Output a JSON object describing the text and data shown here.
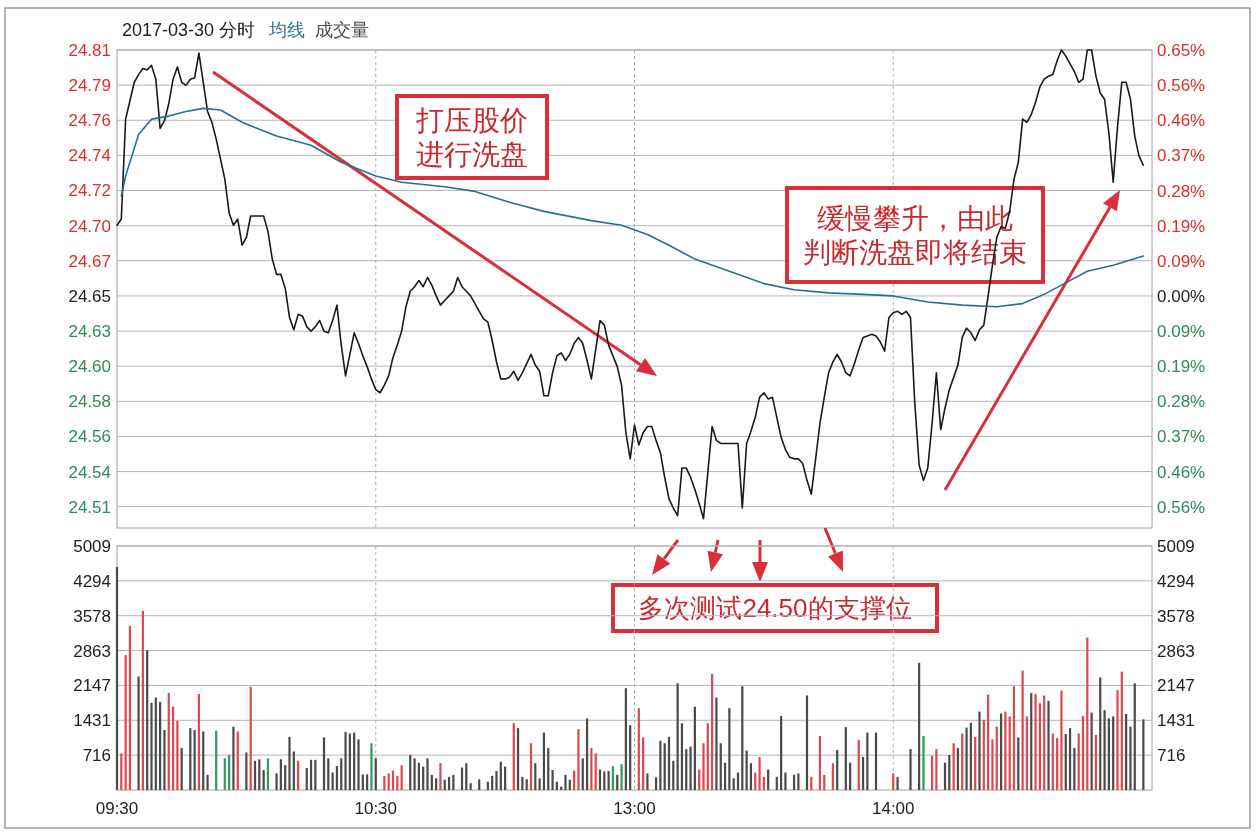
{
  "chart_data": [
    {
      "type": "line",
      "title": "2017-03-30 分时",
      "legend": "top left",
      "grid": true,
      "tick_labels": "y",
      "categories": [
        null,
        null,
        null,
        null,
        null,
        null,
        null,
        null,
        null,
        null,
        null,
        null,
        null,
        null,
        null,
        null,
        null,
        null,
        null,
        null,
        null,
        null,
        null,
        null,
        null,
        null,
        null,
        null,
        null,
        null,
        null,
        null,
        null,
        null,
        null,
        null,
        null,
        null,
        null,
        null,
        null,
        null,
        null,
        null,
        null,
        null,
        null,
        null,
        null,
        null,
        null,
        null,
        null,
        null,
        null,
        null,
        null,
        null,
        null,
        null,
        null,
        null,
        null,
        null,
        null,
        null,
        null,
        null,
        null,
        null,
        null,
        null,
        null,
        null,
        null,
        null,
        null,
        null,
        null,
        null,
        null,
        null,
        null,
        null,
        null,
        null,
        null,
        null,
        null,
        null,
        null,
        null,
        null,
        null,
        null,
        null,
        null,
        null,
        null,
        null,
        null,
        null,
        null,
        null,
        null,
        null,
        null,
        null,
        null,
        null,
        null,
        null,
        null,
        null,
        null,
        null,
        null,
        null,
        null,
        null,
        null,
        null,
        null,
        null,
        null,
        null,
        null,
        null,
        null,
        null,
        null,
        null,
        null,
        null,
        null,
        null,
        null,
        null,
        null,
        null,
        null,
        null,
        null,
        null,
        null,
        null,
        null,
        null,
        null,
        null,
        null,
        null,
        null,
        null,
        null,
        null,
        null,
        null,
        null,
        null,
        null,
        null,
        null,
        null,
        null,
        null,
        null,
        null,
        null,
        null,
        null,
        null,
        null,
        null,
        null,
        null,
        null,
        null,
        null,
        null,
        null,
        null,
        null,
        null,
        null,
        null,
        null,
        null,
        null,
        null,
        null,
        null,
        null,
        null,
        null,
        null,
        null,
        null,
        null,
        null,
        null,
        null,
        null,
        null,
        null,
        null,
        null,
        null,
        null,
        null,
        null,
        null,
        null,
        null,
        null,
        null,
        null,
        null,
        null,
        null,
        null,
        null,
        null,
        null,
        null,
        null,
        null,
        null,
        null,
        null,
        null,
        null,
        null,
        null,
        null,
        null,
        null,
        null,
        null,
        null,
        null
      ],
      "ylim": [
        24.499,
        24.81
      ],
      "yticks": [
        24.81,
        {
          "value": 24.7871,
          "label": "24.79"
        },
        {
          "value": 24.7643,
          "label": "24.76"
        },
        {
          "value": 24.7414,
          "label": "24.74"
        },
        {
          "value": 24.7186,
          "label": "24.72"
        },
        {
          "value": 24.6957,
          "label": "24.70"
        },
        {
          "value": 24.6729,
          "label": "24.67"
        },
        24.65,
        {
          "value": 24.6271,
          "label": "24.63"
        },
        {
          "value": 24.6043,
          "label": "24.60"
        },
        {
          "value": 24.5814,
          "label": "24.58"
        },
        {
          "value": 24.5586,
          "label": "24.56"
        },
        {
          "value": 24.5357,
          "label": "24.54"
        },
        {
          "value": 24.5129,
          "label": "24.51"
        }
      ],
      "y2lim": [
        -0.6126,
        0.6491
      ],
      "y2ticks": [
        {
          "value": 0.6491,
          "label": "0.65%"
        },
        {
          "value": 0.5564,
          "label": "0.56%"
        },
        {
          "value": 0.4636,
          "label": "0.46%"
        },
        {
          "value": 0.3709,
          "label": "0.37%"
        },
        {
          "value": 0.2782,
          "label": "0.28%"
        },
        {
          "value": 0.1855,
          "label": "0.19%"
        },
        {
          "value": 0.0927,
          "label": "0.09%"
        },
        {
          "value": 0,
          "label": "0.00%"
        },
        {
          "value": -0.0927,
          "label": "0.09%"
        },
        {
          "value": -0.1855,
          "label": "0.19%"
        },
        {
          "value": -0.2782,
          "label": "0.28%"
        },
        {
          "value": -0.3709,
          "label": "0.37%"
        },
        {
          "value": -0.4636,
          "label": "0.46%"
        },
        {
          "value": -0.5564,
          "label": "0.56%"
        }
      ],
      "series": [
        {
          "color": "#1a1a1a",
          "values": [
            24.696,
            24.7,
            24.765,
            24.777,
            24.789,
            24.794,
            24.798,
            24.797,
            24.8,
            24.791,
            24.759,
            24.764,
            24.775,
            24.791,
            24.799,
            24.789,
            24.787,
            24.791,
            24.792,
            24.808,
            24.789,
            24.77,
            24.763,
            24.752,
            24.739,
            24.726,
            24.704,
            24.696,
            24.7,
            24.683,
            24.688,
            24.702,
            24.702,
            24.702,
            24.702,
            24.692,
            24.674,
            24.664,
            24.664,
            24.655,
            24.636,
            24.628,
            24.638,
            24.637,
            24.63,
            24.627,
            24.63,
            24.634,
            24.627,
            24.626,
            24.634,
            24.644,
            24.618,
            24.598,
            24.612,
            24.626,
            24.619,
            24.611,
            24.604,
            24.596,
            24.589,
            24.587,
            24.592,
            24.598,
            24.61,
            24.618,
            24.627,
            24.643,
            24.653,
            24.656,
            24.66,
            24.656,
            24.662,
            24.657,
            24.65,
            24.644,
            24.647,
            24.65,
            24.653,
            24.662,
            24.656,
            24.653,
            24.65,
            24.645,
            24.64,
            24.635,
            24.633,
            24.621,
            24.607,
            24.596,
            24.596,
            24.597,
            24.601,
            24.595,
            24.6,
            24.606,
            24.612,
            24.605,
            24.601,
            24.585,
            24.585,
            24.6,
            24.611,
            24.613,
            24.608,
            24.612,
            24.619,
            24.623,
            24.619,
            24.608,
            24.596,
            24.615,
            24.634,
            24.631,
            24.618,
            24.611,
            24.604,
            24.592,
            24.561,
            24.544,
            24.566,
            24.553,
            24.561,
            24.565,
            24.565,
            24.556,
            24.548,
            24.532,
            24.518,
            24.512,
            24.507,
            24.538,
            24.538,
            24.532,
            24.524,
            24.515,
            24.505,
            24.535,
            24.565,
            24.556,
            24.554,
            24.554,
            24.554,
            24.554,
            24.554,
            24.512,
            24.554,
            24.562,
            24.571,
            24.584,
            24.587,
            24.583,
            24.584,
            24.571,
            24.558,
            24.55,
            24.545,
            24.544,
            24.544,
            24.541,
            24.53,
            24.521,
            24.544,
            24.567,
            24.584,
            24.6,
            24.607,
            24.612,
            24.607,
            24.6,
            24.598,
            24.606,
            24.615,
            24.623,
            24.624,
            24.625,
            24.624,
            24.62,
            24.614,
            24.636,
            24.639,
            24.64,
            24.638,
            24.64,
            24.636,
            24.58,
            24.54,
            24.53,
            24.538,
            24.567,
            24.6,
            24.563,
            24.577,
            24.589,
            24.597,
            24.605,
            24.623,
            24.629,
            24.626,
            24.621,
            24.628,
            24.631,
            24.65,
            24.67,
            24.688,
            24.695,
            24.694,
            24.705,
            24.726,
            24.737,
            24.765,
            24.763,
            24.768,
            24.776,
            24.786,
            24.791,
            24.793,
            24.794,
            24.803,
            24.81,
            24.806,
            24.801,
            24.796,
            24.789,
            24.791,
            24.81,
            24.81,
            24.793,
            24.782,
            24.778,
            24.756,
            24.724,
            24.76,
            24.789,
            24.789,
            24.778,
            24.754,
            24.741,
            24.735,
            null,
            null
          ]
        },
        {
          "name": "均线",
          "color": "#2b6f8f",
          "values": [
            null,
            24.715,
            24.728,
            null,
            null,
            24.755,
            null,
            null,
            24.765,
            null,
            null,
            null,
            24.767,
            null,
            null,
            null,
            24.77,
            null,
            null,
            null,
            24.772,
            null,
            null,
            null,
            24.771,
            null,
            null,
            null,
            null,
            24.763,
            null,
            null,
            null,
            null,
            null,
            null,
            null,
            24.754,
            null,
            null,
            null,
            null,
            null,
            null,
            null,
            24.748,
            null,
            null,
            null,
            null,
            null,
            null,
            24.737,
            null,
            null,
            null,
            null,
            null,
            null,
            null,
            24.728,
            null,
            null,
            null,
            null,
            null,
            24.724,
            null,
            null,
            null,
            null,
            null,
            null,
            null,
            null,
            null,
            24.721,
            null,
            null,
            null,
            null,
            null,
            null,
            24.718,
            null,
            null,
            null,
            null,
            null,
            null,
            null,
            24.711,
            null,
            null,
            null,
            null,
            null,
            null,
            null,
            24.705,
            null,
            null,
            null,
            null,
            null,
            null,
            null,
            null,
            null,
            null,
            24.699,
            null,
            null,
            null,
            null,
            null,
            null,
            24.696,
            null,
            null,
            null,
            null,
            null,
            24.69,
            null,
            null,
            null,
            null,
            24.683,
            null,
            null,
            null,
            null,
            null,
            24.674,
            null,
            null,
            null,
            null,
            null,
            null,
            null,
            24.666,
            null,
            null,
            null,
            null,
            null,
            null,
            null,
            24.658,
            null,
            null,
            null,
            null,
            null,
            null,
            24.654,
            null,
            null,
            null,
            null,
            null,
            null,
            null,
            24.652,
            null,
            null,
            null,
            null,
            null,
            null,
            null,
            24.651,
            null,
            null,
            null,
            null,
            null,
            null,
            24.65,
            null,
            null,
            null,
            null,
            null,
            null,
            null,
            24.646,
            null,
            null,
            null,
            null,
            null,
            null,
            null,
            24.644,
            null,
            null,
            null,
            null,
            null,
            null,
            null,
            24.643,
            null,
            null,
            null,
            null,
            null,
            24.645,
            null,
            null,
            null,
            null,
            24.651,
            null,
            null,
            null,
            24.657,
            null,
            null,
            null,
            null,
            null,
            24.666,
            null,
            null,
            null,
            null,
            null,
            24.67,
            null,
            null,
            null,
            null,
            null,
            null,
            24.676,
            null,
            null
          ]
        }
      ],
      "annotations": [
        "打压股价进行洗盘",
        "缓慢攀升，由此判断洗盘即将结束",
        "多次测试24.50的支撑位"
      ]
    },
    {
      "type": "bar",
      "legend": "top left",
      "grid": true,
      "categories": [
        "09:30",
        null,
        null,
        null,
        null,
        null,
        null,
        null,
        null,
        null,
        null,
        null,
        null,
        null,
        null,
        null,
        null,
        null,
        null,
        null,
        null,
        null,
        null,
        null,
        null,
        null,
        null,
        null,
        null,
        null,
        null,
        null,
        null,
        null,
        null,
        null,
        null,
        null,
        null,
        null,
        null,
        null,
        null,
        null,
        null,
        null,
        null,
        null,
        null,
        null,
        null,
        null,
        null,
        null,
        null,
        null,
        null,
        null,
        null,
        null,
        "10:30",
        null,
        null,
        null,
        null,
        null,
        null,
        null,
        null,
        null,
        null,
        null,
        null,
        null,
        null,
        null,
        null,
        null,
        null,
        null,
        null,
        null,
        null,
        null,
        null,
        null,
        null,
        null,
        null,
        null,
        null,
        null,
        null,
        null,
        null,
        null,
        null,
        null,
        null,
        null,
        null,
        null,
        null,
        null,
        null,
        null,
        null,
        null,
        null,
        null,
        null,
        null,
        null,
        null,
        null,
        null,
        null,
        null,
        null,
        null,
        "13:00",
        null,
        null,
        null,
        null,
        null,
        null,
        null,
        null,
        null,
        null,
        null,
        null,
        null,
        null,
        null,
        null,
        null,
        null,
        null,
        null,
        null,
        null,
        null,
        null,
        null,
        null,
        null,
        null,
        null,
        null,
        null,
        null,
        null,
        null,
        null,
        null,
        null,
        null,
        null,
        null,
        null,
        null,
        null,
        null,
        null,
        null,
        null,
        null,
        null,
        null,
        null,
        null,
        null,
        null,
        null,
        null,
        null,
        null,
        null,
        "14:00",
        null,
        null,
        null,
        null,
        null,
        null,
        null,
        null,
        null,
        null,
        null,
        null,
        null,
        null,
        null,
        null,
        null,
        null,
        null,
        null,
        null,
        null,
        null,
        null,
        null,
        null,
        null,
        null,
        null,
        null,
        null,
        null,
        null,
        null,
        null,
        null,
        null,
        null,
        null,
        null,
        null,
        null,
        null,
        null,
        null,
        null,
        null,
        null,
        null,
        null,
        null,
        null,
        null,
        null,
        null,
        null,
        null,
        null,
        null,
        null
      ],
      "ylim": [
        0,
        5009
      ],
      "yticks": [
        716,
        1431,
        2147,
        2863,
        3578,
        4294,
        5009
      ],
      "y2lim": [
        0,
        5009
      ],
      "y2ticks": [
        716,
        1431,
        2147,
        2863,
        3578,
        4294,
        5009
      ],
      "series": [
        {
          "name": "成交量",
          "color": "#4a4a4a",
          "values": [
            4580,
            750,
            2770,
            3370,
            null,
            2330,
            3680,
            2870,
            1790,
            1900,
            1810,
            1230,
            1990,
            1710,
            1420,
            860,
            null,
            1270,
            1230,
            1970,
            1200,
            310,
            null,
            1220,
            null,
            650,
            720,
            1300,
            1200,
            null,
            770,
            2120,
            600,
            630,
            410,
            650,
            null,
            340,
            630,
            510,
            1090,
            790,
            600,
            null,
            450,
            620,
            620,
            null,
            1080,
            650,
            360,
            490,
            650,
            1190,
            1160,
            1180,
            1040,
            320,
            320,
            960,
            650,
            null,
            290,
            340,
            400,
            290,
            510,
            null,
            720,
            650,
            560,
            480,
            650,
            310,
            240,
            550,
            210,
            270,
            310,
            null,
            460,
            550,
            140,
            null,
            220,
            null,
            170,
            290,
            390,
            580,
            480,
            null,
            1370,
            1270,
            270,
            220,
            960,
            550,
            240,
            1180,
            860,
            410,
            170,
            70,
            310,
            210,
            400,
            1250,
            650,
            1470,
            860,
            750,
            420,
            380,
            390,
            490,
            310,
            530,
            2090,
            1330,
            null,
            1680,
            1080,
            340,
            null,
            260,
            1010,
            960,
            1090,
            600,
            2190,
            1370,
            840,
            890,
            1710,
            420,
            960,
            1370,
            2380,
            1900,
            960,
            560,
            1680,
            240,
            360,
            2130,
            810,
            550,
            360,
            680,
            270,
            420,
            null,
            270,
            1520,
            360,
            null,
            310,
            340,
            null,
            1940,
            270,
            null,
            1110,
            310,
            null,
            550,
            820,
            null,
            1290,
            560,
            null,
            1030,
            680,
            1180,
            null,
            1180,
            null,
            null,
            null,
            340,
            270,
            null,
            null,
            840,
            null,
            2610,
            1110,
            null,
            700,
            840,
            null,
            560,
            720,
            960,
            860,
            1160,
            1280,
            1380,
            1090,
            1610,
            1440,
            1960,
            1040,
            1300,
            1570,
            1610,
            1510,
            2130,
            1080,
            2450,
            1510,
            1990,
            1970,
            1780,
            1940,
            1830,
            1160,
            1070,
            2040,
            1150,
            1270,
            860,
            1160,
            1520,
            3130,
            1590,
            1130,
            2310,
            1640,
            1470,
            1510,
            2050,
            2430,
            1560,
            1300,
            2190,
            null,
            1450,
            null,
            null
          ],
          "colors": [
            "#4a4a4a",
            "#e0464e",
            "#e0464e",
            "#e0464e",
            null,
            "#4a4a4a",
            "#e0464e",
            "#4a4a4a",
            "#4a4a4a",
            "#4a4a4a",
            "#4a4a4a",
            "#4a4a4a",
            "#e0464e",
            "#e0464e",
            "#e0464e",
            "#4a4a4a",
            null,
            "#4a4a4a",
            "#4a4a4a",
            "#e0464e",
            "#4a4a4a",
            "#4a4a4a",
            null,
            "#2e9a5c",
            null,
            "#2e9a5c",
            "#2e9a5c",
            "#4a4a4a",
            "#e0464e",
            null,
            "#4a4a4a",
            "#e0464e",
            "#4a4a4a",
            "#4a4a4a",
            "#4a4a4a",
            "#2e9a5c",
            null,
            "#4a4a4a",
            "#4a4a4a",
            "#4a4a4a",
            "#4a4a4a",
            "#4a4a4a",
            "#e0464e",
            null,
            "#4a4a4a",
            "#4a4a4a",
            "#4a4a4a",
            null,
            "#4a4a4a",
            "#4a4a4a",
            "#4a4a4a",
            "#4a4a4a",
            "#4a4a4a",
            "#4a4a4a",
            "#4a4a4a",
            "#4a4a4a",
            "#4a4a4a",
            "#4a4a4a",
            "#4a4a4a",
            "#2e9a5c",
            "#4a4a4a",
            null,
            "#e0464e",
            "#e0464e",
            "#e0464e",
            "#e0464e",
            "#e0464e",
            null,
            "#4a4a4a",
            "#4a4a4a",
            "#4a4a4a",
            "#4a4a4a",
            "#4a4a4a",
            "#4a4a4a",
            "#4a4a4a",
            "#e0464e",
            "#4a4a4a",
            "#4a4a4a",
            "#4a4a4a",
            null,
            "#4a4a4a",
            "#4a4a4a",
            "#4a4a4a",
            null,
            "#4a4a4a",
            null,
            "#4a4a4a",
            "#4a4a4a",
            "#4a4a4a",
            "#4a4a4a",
            "#4a4a4a",
            null,
            "#e0464e",
            "#4a4a4a",
            "#4a4a4a",
            "#4a4a4a",
            "#e0464e",
            "#4a4a4a",
            "#4a4a4a",
            "#4a4a4a",
            "#4a4a4a",
            "#4a4a4a",
            "#4a4a4a",
            "#4a4a4a",
            "#4a4a4a",
            "#4a4a4a",
            "#e0464e",
            "#e0464e",
            "#4a4a4a",
            "#4a4a4a",
            "#e0464e",
            "#e0464e",
            "#4a4a4a",
            "#4a4a4a",
            "#4a4a4a",
            "#2e9a5c",
            "#4a4a4a",
            "#2e9a5c",
            "#4a4a4a",
            "#4a4a4a",
            null,
            "#e0464e",
            "#e0464e",
            "#4a4a4a",
            null,
            "#4a4a4a",
            "#4a4a4a",
            "#4a4a4a",
            "#4a4a4a",
            "#4a4a4a",
            "#4a4a4a",
            "#4a4a4a",
            "#4a4a4a",
            "#4a4a4a",
            "#4a4a4a",
            "#e0464e",
            "#e0464e",
            "#e0464e",
            "#e0464e",
            "#4a4a4a",
            "#4a4a4a",
            "#4a4a4a",
            "#4a4a4a",
            "#4a4a4a",
            "#4a4a4a",
            "#4a4a4a",
            "#4a4a4a",
            "#4a4a4a",
            "#e0464e",
            "#e0464e",
            "#e0464e",
            "#4a4a4a",
            null,
            "#4a4a4a",
            "#4a4a4a",
            "#4a4a4a",
            null,
            "#4a4a4a",
            "#4a4a4a",
            null,
            "#4a4a4a",
            "#e0464e",
            null,
            "#e0464e",
            "#e0464e",
            null,
            "#e0464e",
            "#4a4a4a",
            null,
            "#4a4a4a",
            "#4a4a4a",
            null,
            "#e0464e",
            "#4a4a4a",
            "#4a4a4a",
            null,
            "#4a4a4a",
            null,
            null,
            null,
            "#e0464e",
            "#4a4a4a",
            null,
            null,
            "#4a4a4a",
            null,
            "#4a4a4a",
            "#2e9a5c",
            null,
            "#e0464e",
            "#e0464e",
            null,
            "#4a4a4a",
            "#4a4a4a",
            "#e0464e",
            "#4a4a4a",
            "#e0464e",
            "#4a4a4a",
            "#4a4a4a",
            "#e0464e",
            "#4a4a4a",
            "#e0464e",
            "#e0464e",
            "#e0464e",
            "#e0464e",
            "#4a4a4a",
            "#e0464e",
            "#e0464e",
            "#e0464e",
            "#4a4a4a",
            "#e0464e",
            "#e0464e",
            "#4a4a4a",
            "#e0464e",
            "#e0464e",
            "#e0464e",
            "#4a4a4a",
            "#e0464e",
            "#e0464e",
            "#e0464e",
            "#4a4a4a",
            "#4a4a4a",
            "#4a4a4a",
            "#e0464e",
            "#e0464e",
            "#e0464e",
            "#4a4a4a",
            "#e0464e",
            "#4a4a4a",
            "#4a4a4a",
            "#4a4a4a",
            "#4a4a4a",
            "#e0464e",
            "#e0464e",
            "#4a4a4a",
            "#4a4a4a",
            "#4a4a4a",
            null,
            "#4a4a4a",
            null,
            null
          ]
        }
      ]
    }
  ]
}
